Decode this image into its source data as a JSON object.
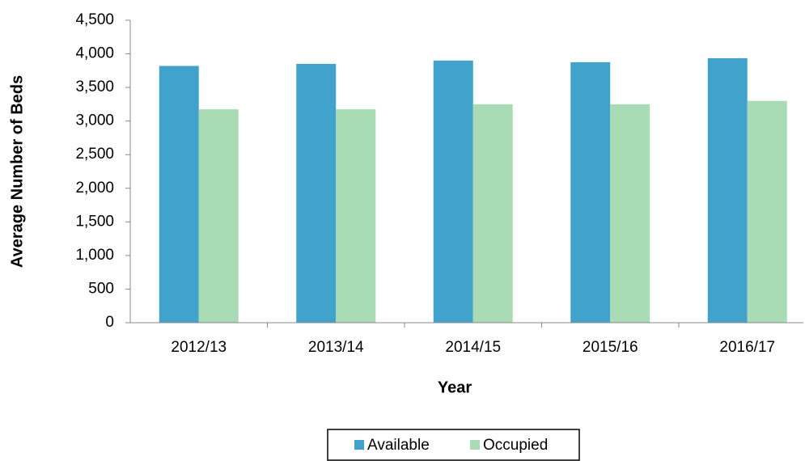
{
  "chart_data": {
    "type": "bar",
    "x_label": "Year",
    "y_label": "Average Number of Beds",
    "categories": [
      "2012/13",
      "2013/14",
      "2014/15",
      "2015/16",
      "2016/17"
    ],
    "series": [
      {
        "name": "Available",
        "color": "#41a2cb",
        "values": [
          3820,
          3850,
          3900,
          3875,
          3935
        ]
      },
      {
        "name": "Occupied",
        "color": "#a9dcb5",
        "values": [
          3175,
          3175,
          3250,
          3250,
          3300
        ]
      }
    ],
    "ylim": [
      0,
      4500
    ],
    "yticks": [
      0,
      500,
      {
        "value": 1000,
        "label": "1,000"
      },
      {
        "value": 1500,
        "label": "1,500"
      },
      {
        "value": 2000,
        "label": "2,000"
      },
      {
        "value": 2500,
        "label": "2,500"
      },
      {
        "value": 3000,
        "label": "3,000"
      },
      {
        "value": 3500,
        "label": "3,500"
      },
      {
        "value": 4000,
        "label": "4,000"
      },
      {
        "value": 4500,
        "label": "4,500"
      }
    ],
    "grid": false,
    "legend": "bottom"
  }
}
